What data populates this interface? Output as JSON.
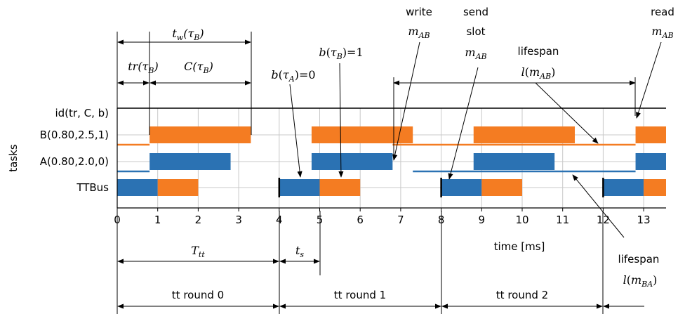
{
  "colors": {
    "task_a": "#2b72b3",
    "task_b": "#f47c22",
    "axis": "#000000",
    "grid": "#c8c8c8"
  },
  "chart_data": {
    "type": "gantt",
    "xlabel": "time [ms]",
    "ylabel": "tasks",
    "xlim": [
      0,
      13.6
    ],
    "x_ticks": [
      "0",
      "1",
      "2",
      "3",
      "4",
      "5",
      "6",
      "7",
      "8",
      "9",
      "10",
      "11",
      "12",
      "13"
    ],
    "rows": [
      "id(tr,  C, b)",
      "B(0.80,2.5,1)",
      "A(0.80,2.0,0)",
      "TTBus"
    ],
    "grid": true,
    "bars": [
      {
        "row": "B(0.80,2.5,1)",
        "start": 0.8,
        "end": 3.3,
        "color": "task_b"
      },
      {
        "row": "B(0.80,2.5,1)",
        "start": 4.8,
        "end": 7.3,
        "color": "task_b"
      },
      {
        "row": "B(0.80,2.5,1)",
        "start": 8.8,
        "end": 11.3,
        "color": "task_b"
      },
      {
        "row": "B(0.80,2.5,1)",
        "start": 12.8,
        "end": 13.6,
        "color": "task_b"
      },
      {
        "row": "A(0.80,2.0,0)",
        "start": 0.8,
        "end": 2.8,
        "color": "task_a"
      },
      {
        "row": "A(0.80,2.0,0)",
        "start": 4.8,
        "end": 6.8,
        "color": "task_a"
      },
      {
        "row": "A(0.80,2.0,0)",
        "start": 8.8,
        "end": 10.8,
        "color": "task_a"
      },
      {
        "row": "A(0.80,2.0,0)",
        "start": 12.8,
        "end": 13.6,
        "color": "task_a"
      },
      {
        "row": "TTBus",
        "start": 0,
        "end": 1,
        "color": "task_a"
      },
      {
        "row": "TTBus",
        "start": 1,
        "end": 2,
        "color": "task_b"
      },
      {
        "row": "TTBus",
        "start": 4,
        "end": 5,
        "color": "task_a"
      },
      {
        "row": "TTBus",
        "start": 5,
        "end": 6,
        "color": "task_b"
      },
      {
        "row": "TTBus",
        "start": 8,
        "end": 9,
        "color": "task_a"
      },
      {
        "row": "TTBus",
        "start": 9,
        "end": 10,
        "color": "task_b"
      },
      {
        "row": "TTBus",
        "start": 12,
        "end": 13,
        "color": "task_a"
      },
      {
        "row": "TTBus",
        "start": 13,
        "end": 13.6,
        "color": "task_b"
      }
    ],
    "lifespan_lines": [
      {
        "row": "B(0.80,2.5,1)",
        "start": 0,
        "end": 0.8,
        "color": "task_b"
      },
      {
        "row": "B(0.80,2.5,1)",
        "start": 6.8,
        "end": 12.8,
        "color": "task_b"
      },
      {
        "row": "A(0.80,2.0,0)",
        "start": 0,
        "end": 0.8,
        "color": "task_a"
      },
      {
        "row": "A(0.80,2.0,0)",
        "start": 7.3,
        "end": 12.8,
        "color": "task_a"
      }
    ],
    "tt_round_starts": [
      0,
      4,
      8,
      12
    ],
    "annotations": {
      "tw": "t_w(τ_B)",
      "tr": "tr(τ_B)",
      "c": "C(τ_B)",
      "b_tau_a": "b(τ_A)=0",
      "b_tau_b": "b(τ_B)=1",
      "write": "write",
      "send": "send",
      "slot": "slot",
      "read": "read",
      "lifespan": "lifespan",
      "m_ab": "m_AB",
      "l_m_ab": "l(m_AB)",
      "l_m_ba": "l(m_BA)",
      "t_tt": "T_tt",
      "t_s": "t_s"
    },
    "rounds": [
      "tt round 0",
      "tt round 1",
      "tt round 2"
    ]
  }
}
